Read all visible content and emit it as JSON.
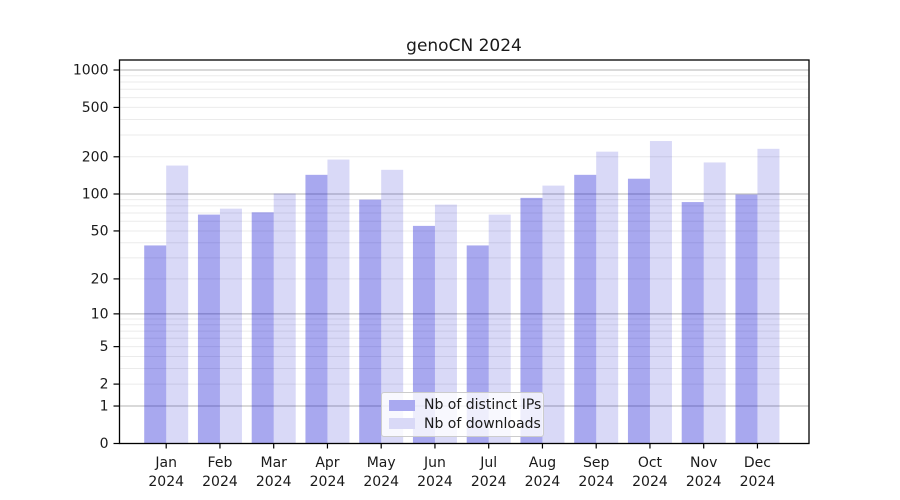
{
  "chart_data": {
    "type": "bar",
    "title": "genoCN 2024",
    "year": "2024",
    "months": [
      "Jan",
      "Feb",
      "Mar",
      "Apr",
      "May",
      "Jun",
      "Jul",
      "Aug",
      "Sep",
      "Oct",
      "Nov",
      "Dec"
    ],
    "series": [
      {
        "name": "Nb of distinct IPs",
        "values": [
          38,
          68,
          71,
          143,
          90,
          55,
          38,
          93,
          143,
          133,
          86,
          99
        ]
      },
      {
        "name": "Nb of downloads",
        "values": [
          170,
          76,
          101,
          190,
          157,
          82,
          68,
          117,
          220,
          268,
          180,
          232
        ]
      }
    ],
    "yticks": [
      0,
      1,
      2,
      5,
      10,
      20,
      50,
      100,
      200,
      500,
      1000
    ],
    "yscale": "log1p",
    "ylim": [
      0,
      1200
    ],
    "grid": "major+minor",
    "legend_position": "bottom-center-inside",
    "colors": {
      "distinct_ips_fill": "rgba(0,0,208,0.34)",
      "downloads_fill": "rgba(0,0,204,0.15)",
      "legend_swatch_ips": "#a9a9f0",
      "legend_swatch_downloads": "#d9d9f7",
      "grid_major": "#b3b3b3",
      "grid_minor": "#ebebeb",
      "axis": "#000000",
      "text": "#1a1a1a"
    }
  }
}
